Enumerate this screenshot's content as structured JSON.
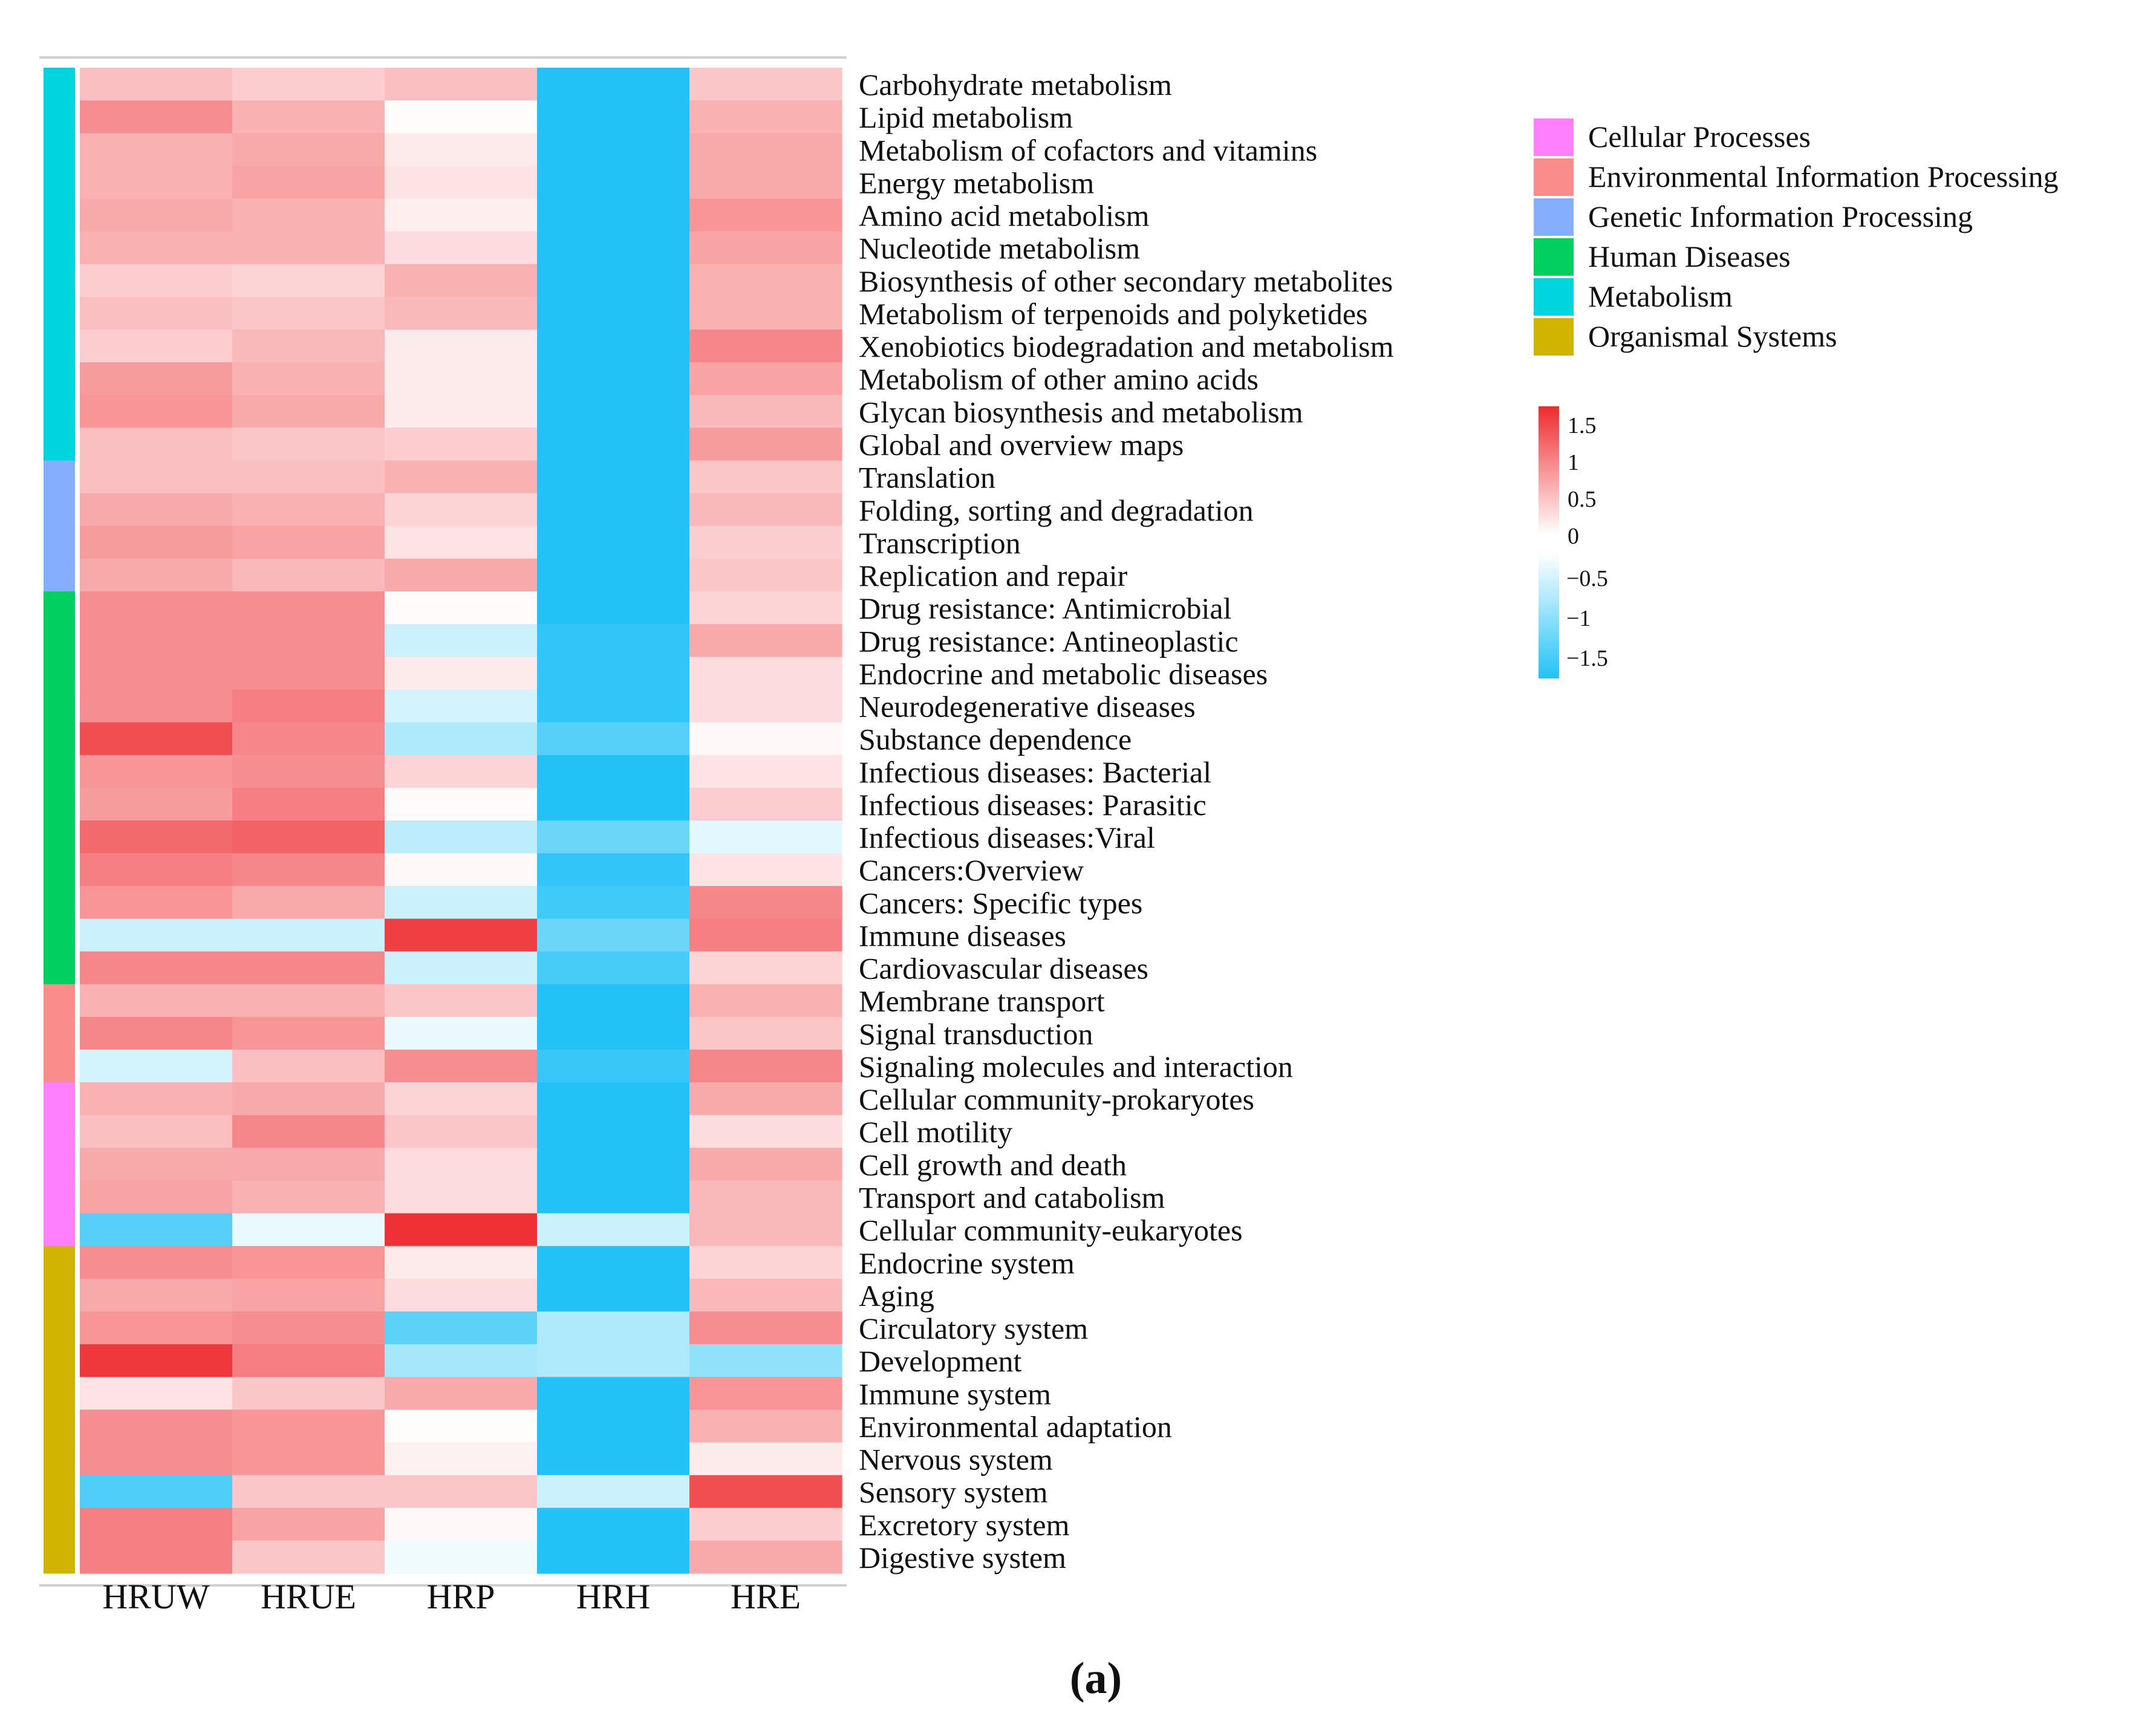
{
  "panel_label": "(a)",
  "chart_data": {
    "type": "heatmap",
    "title": "",
    "columns": [
      "HRUW",
      "HRUE",
      "HRP",
      "HRH",
      "HRE"
    ],
    "rows": [
      {
        "label": "Carbohydrate metabolism",
        "group": "Metabolism",
        "values": [
          0.45,
          0.35,
          0.45,
          -1.5,
          0.4
        ]
      },
      {
        "label": "Lipid metabolism",
        "group": "Metabolism",
        "values": [
          0.8,
          0.55,
          0.02,
          -1.5,
          0.55
        ]
      },
      {
        "label": "Metabolism of cofactors and vitamins",
        "group": "Metabolism",
        "values": [
          0.55,
          0.6,
          0.15,
          -1.5,
          0.6
        ]
      },
      {
        "label": "Energy metabolism",
        "group": "Metabolism",
        "values": [
          0.55,
          0.65,
          0.2,
          -1.5,
          0.6
        ]
      },
      {
        "label": "Amino acid metabolism",
        "group": "Metabolism",
        "values": [
          0.6,
          0.55,
          0.12,
          -1.5,
          0.75
        ]
      },
      {
        "label": "Nucleotide metabolism",
        "group": "Metabolism",
        "values": [
          0.55,
          0.55,
          0.25,
          -1.5,
          0.65
        ]
      },
      {
        "label": "Biosynthesis of other secondary metabolites",
        "group": "Metabolism",
        "values": [
          0.35,
          0.3,
          0.55,
          -1.5,
          0.55
        ]
      },
      {
        "label": "Metabolism of terpenoids and polyketides",
        "group": "Metabolism",
        "values": [
          0.45,
          0.4,
          0.5,
          -1.5,
          0.55
        ]
      },
      {
        "label": "Xenobiotics biodegradation and metabolism",
        "group": "Metabolism",
        "values": [
          0.35,
          0.5,
          0.15,
          -1.5,
          0.85
        ]
      },
      {
        "label": "Metabolism of other amino acids",
        "group": "Metabolism",
        "values": [
          0.7,
          0.55,
          0.15,
          -1.5,
          0.65
        ]
      },
      {
        "label": "Glycan biosynthesis and metabolism",
        "group": "Metabolism",
        "values": [
          0.75,
          0.6,
          0.15,
          -1.5,
          0.5
        ]
      },
      {
        "label": "Global and overview maps",
        "group": "Metabolism",
        "values": [
          0.45,
          0.4,
          0.35,
          -1.5,
          0.7
        ]
      },
      {
        "label": "Translation",
        "group": "Genetic Information Processing",
        "values": [
          0.45,
          0.45,
          0.55,
          -1.5,
          0.4
        ]
      },
      {
        "label": "Folding, sorting and degradation",
        "group": "Genetic Information Processing",
        "values": [
          0.6,
          0.55,
          0.3,
          -1.5,
          0.5
        ]
      },
      {
        "label": "Transcription",
        "group": "Genetic Information Processing",
        "values": [
          0.7,
          0.65,
          0.2,
          -1.5,
          0.35
        ]
      },
      {
        "label": "Replication and repair",
        "group": "Genetic Information Processing",
        "values": [
          0.6,
          0.5,
          0.6,
          -1.5,
          0.4
        ]
      },
      {
        "label": "Drug resistance: Antimicrobial",
        "group": "Human Diseases",
        "values": [
          0.8,
          0.8,
          0.03,
          -1.5,
          0.3
        ]
      },
      {
        "label": "Drug resistance: Antineoplastic",
        "group": "Human Diseases",
        "values": [
          0.8,
          0.8,
          -0.35,
          -1.4,
          0.6
        ]
      },
      {
        "label": "Endocrine and metabolic diseases",
        "group": "Human Diseases",
        "values": [
          0.8,
          0.8,
          0.15,
          -1.4,
          0.25
        ]
      },
      {
        "label": "Neurodegenerative diseases",
        "group": "Human Diseases",
        "values": [
          0.8,
          0.9,
          -0.3,
          -1.4,
          0.25
        ]
      },
      {
        "label": "Substance dependence",
        "group": "Human Diseases",
        "values": [
          1.25,
          0.85,
          -0.55,
          -1.15,
          0.05
        ]
      },
      {
        "label": "Infectious diseases: Bacterial",
        "group": "Human Diseases",
        "values": [
          0.75,
          0.8,
          0.3,
          -1.5,
          0.2
        ]
      },
      {
        "label": "Infectious diseases: Parasitic",
        "group": "Human Diseases",
        "values": [
          0.7,
          0.9,
          0.03,
          -1.5,
          0.35
        ]
      },
      {
        "label": "Infectious diseases:Viral",
        "group": "Human Diseases",
        "values": [
          1.05,
          1.1,
          -0.45,
          -1.0,
          -0.2
        ]
      },
      {
        "label": "Cancers:Overview",
        "group": "Human Diseases",
        "values": [
          0.9,
          0.85,
          0.05,
          -1.4,
          0.2
        ]
      },
      {
        "label": "Cancers: Specific types",
        "group": "Human Diseases",
        "values": [
          0.75,
          0.6,
          -0.35,
          -1.3,
          0.85
        ]
      },
      {
        "label": "Immune diseases",
        "group": "Human Diseases",
        "values": [
          -0.35,
          -0.35,
          1.35,
          -1.0,
          0.9
        ]
      },
      {
        "label": "Cardiovascular diseases",
        "group": "Human Diseases",
        "values": [
          0.85,
          0.85,
          -0.35,
          -1.25,
          0.3
        ]
      },
      {
        "label": "Membrane transport",
        "group": "Environmental Information Processing",
        "values": [
          0.55,
          0.55,
          0.4,
          -1.5,
          0.55
        ]
      },
      {
        "label": "Signal transduction",
        "group": "Environmental Information Processing",
        "values": [
          0.85,
          0.75,
          -0.15,
          -1.5,
          0.4
        ]
      },
      {
        "label": "Signaling molecules and interaction",
        "group": "Environmental Information Processing",
        "values": [
          -0.3,
          0.45,
          0.8,
          -1.35,
          0.85
        ]
      },
      {
        "label": "Cellular community-prokaryotes",
        "group": "Cellular Processes",
        "values": [
          0.55,
          0.6,
          0.3,
          -1.5,
          0.6
        ]
      },
      {
        "label": "Cell motility",
        "group": "Cellular Processes",
        "values": [
          0.45,
          0.85,
          0.4,
          -1.5,
          0.25
        ]
      },
      {
        "label": "Cell growth and death",
        "group": "Cellular Processes",
        "values": [
          0.6,
          0.6,
          0.25,
          -1.5,
          0.6
        ]
      },
      {
        "label": "Transport and catabolism",
        "group": "Cellular Processes",
        "values": [
          0.65,
          0.55,
          0.25,
          -1.5,
          0.5
        ]
      },
      {
        "label": "Cellular community-eukaryotes",
        "group": "Cellular Processes",
        "values": [
          -1.15,
          -0.15,
          1.45,
          -0.35,
          0.5
        ]
      },
      {
        "label": "Endocrine system",
        "group": "Organismal Systems",
        "values": [
          0.8,
          0.75,
          0.15,
          -1.5,
          0.3
        ]
      },
      {
        "label": "Aging",
        "group": "Organismal Systems",
        "values": [
          0.6,
          0.65,
          0.25,
          -1.5,
          0.5
        ]
      },
      {
        "label": "Circulatory system",
        "group": "Organismal Systems",
        "values": [
          0.75,
          0.8,
          -1.1,
          -0.55,
          0.8
        ]
      },
      {
        "label": "Development",
        "group": "Organismal Systems",
        "values": [
          1.4,
          0.9,
          -0.6,
          -0.55,
          -0.75
        ]
      },
      {
        "label": "Immune system",
        "group": "Organismal Systems",
        "values": [
          0.2,
          0.4,
          0.6,
          -1.5,
          0.75
        ]
      },
      {
        "label": "Environmental adaptation",
        "group": "Organismal Systems",
        "values": [
          0.8,
          0.75,
          0.02,
          -1.5,
          0.55
        ]
      },
      {
        "label": "Nervous system",
        "group": "Organismal Systems",
        "values": [
          0.8,
          0.75,
          0.1,
          -1.5,
          0.15
        ]
      },
      {
        "label": "Sensory system",
        "group": "Organismal Systems",
        "values": [
          -1.2,
          0.4,
          0.4,
          -0.35,
          1.25
        ]
      },
      {
        "label": "Excretory system",
        "group": "Organismal Systems",
        "values": [
          0.9,
          0.65,
          0.05,
          -1.5,
          0.35
        ]
      },
      {
        "label": "Digestive system",
        "group": "Organismal Systems",
        "values": [
          0.9,
          0.4,
          -0.1,
          -1.5,
          0.6
        ]
      }
    ],
    "groups": [
      {
        "name": "Cellular Processes",
        "color": "#FF80FF"
      },
      {
        "name": "Environmental Information Processing",
        "color": "#FA8C8C"
      },
      {
        "name": "Genetic Information Processing",
        "color": "#86AEFF"
      },
      {
        "name": "Human Diseases",
        "color": "#00D060"
      },
      {
        "name": "Metabolism",
        "color": "#00D4DC"
      },
      {
        "name": "Organismal Systems",
        "color": "#D0B400"
      }
    ],
    "colorscale": {
      "range": [
        -1.5,
        1.5
      ],
      "positive_ticks": [
        "1.5",
        "1",
        "0.5",
        "0"
      ],
      "negative_ticks": [
        "−0.5",
        "−1",
        "−1.5"
      ],
      "high_color": "#EE2A2E",
      "zero_color": "#FFFFFF",
      "low_color": "#22C2F6"
    }
  }
}
